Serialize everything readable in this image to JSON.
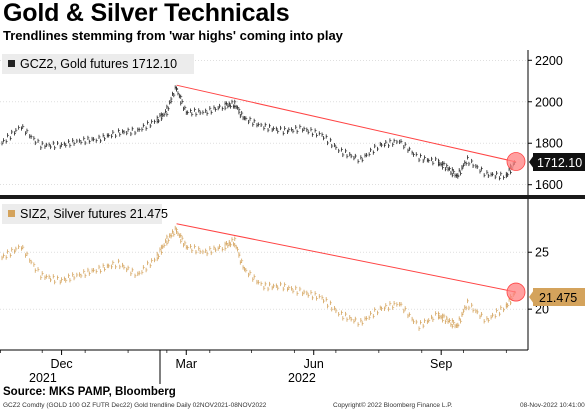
{
  "title": "Gold & Silver Technicals",
  "subtitle": "Trendlines stemming from 'war highs' coming into play",
  "source": "Source: MKS PAMP, Bloomberg",
  "footer": {
    "left": "GCZ2 Comdty (GOLD 100 OZ FUTR  Dec22) Gold trendline  Daily 02NOV2021-08NOV2022",
    "middle": "Copyright© 2022 Bloomberg Finance L.P.",
    "right": "08-Nov-2022 10:41:00"
  },
  "colors": {
    "gold_series": "#222222",
    "silver_series": "#d4a35c",
    "trendline": "#ff4444",
    "highlight": "#ff8080",
    "panel_divider": "#1a1a1a"
  },
  "chart_data": [
    {
      "type": "line",
      "panel": "top",
      "legend_label": "GCZ2, Gold futures 1712.10",
      "last_value_label": "1712.10",
      "y_ticks": [
        "2200",
        "2000",
        "1800",
        "1600"
      ],
      "ylim": [
        1560,
        2240
      ],
      "x_ticks": [
        "Dec",
        "Mar",
        "Jun",
        "Sep"
      ],
      "x_year_labels": [
        "2021",
        "2022"
      ],
      "x": [
        "2021-11-02",
        "2021-11-16",
        "2021-11-30",
        "2021-12-14",
        "2021-12-28",
        "2022-01-11",
        "2022-01-25",
        "2022-02-08",
        "2022-02-22",
        "2022-03-01",
        "2022-03-08",
        "2022-03-15",
        "2022-03-29",
        "2022-04-12",
        "2022-04-19",
        "2022-04-26",
        "2022-05-10",
        "2022-05-24",
        "2022-06-07",
        "2022-06-21",
        "2022-07-05",
        "2022-07-19",
        "2022-08-02",
        "2022-08-16",
        "2022-08-30",
        "2022-09-13",
        "2022-09-20",
        "2022-09-27",
        "2022-10-04",
        "2022-10-18",
        "2022-11-01",
        "2022-11-08"
      ],
      "values": [
        1800,
        1880,
        1790,
        1790,
        1810,
        1820,
        1850,
        1860,
        1910,
        1950,
        2070,
        1950,
        1950,
        1980,
        1990,
        1920,
        1880,
        1860,
        1870,
        1840,
        1760,
        1720,
        1790,
        1810,
        1730,
        1710,
        1680,
        1640,
        1720,
        1650,
        1640,
        1712
      ],
      "trendline": {
        "from": [
          "2022-03-08",
          2080
        ],
        "to": [
          "2022-11-08",
          1710
        ]
      }
    },
    {
      "type": "line",
      "panel": "bottom",
      "legend_label": "SIZ2, Silver futures 21.475",
      "last_value_label": "21.475",
      "y_ticks": [
        "25",
        "20"
      ],
      "ylim": [
        16.5,
        29.5
      ],
      "x": [
        "2021-11-02",
        "2021-11-16",
        "2021-11-30",
        "2021-12-14",
        "2021-12-28",
        "2022-01-11",
        "2022-01-25",
        "2022-02-08",
        "2022-02-22",
        "2022-03-01",
        "2022-03-08",
        "2022-03-15",
        "2022-03-29",
        "2022-04-12",
        "2022-04-19",
        "2022-04-26",
        "2022-05-10",
        "2022-05-24",
        "2022-06-07",
        "2022-06-21",
        "2022-07-05",
        "2022-07-19",
        "2022-08-02",
        "2022-08-16",
        "2022-08-30",
        "2022-09-13",
        "2022-09-20",
        "2022-09-27",
        "2022-10-04",
        "2022-10-18",
        "2022-11-01",
        "2022-11-08"
      ],
      "values": [
        24.5,
        25.5,
        23.0,
        22.5,
        23.0,
        23.5,
        24.0,
        23.0,
        24.5,
        26.0,
        27.0,
        25.5,
        25.0,
        25.5,
        26.0,
        23.5,
        22.0,
        22.0,
        21.5,
        21.0,
        19.5,
        18.8,
        20.0,
        20.5,
        18.5,
        19.5,
        19.0,
        18.5,
        20.5,
        19.0,
        20.2,
        21.5
      ],
      "trendline": {
        "from": [
          "2022-03-08",
          27.5
        ],
        "to": [
          "2022-11-08",
          21.5
        ]
      }
    }
  ]
}
